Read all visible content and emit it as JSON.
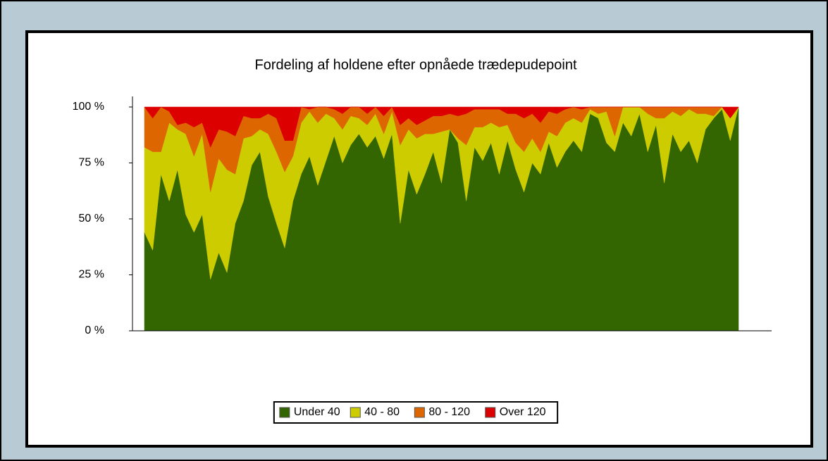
{
  "chart_data": {
    "type": "stacked_area_100",
    "title": "Fordeling af holdene efter opnåede trædepudepoint",
    "categories": [
      null,
      null,
      null,
      null,
      null,
      null,
      null,
      null,
      null,
      null,
      null,
      null,
      null,
      null,
      null,
      null,
      null,
      null,
      null,
      null,
      null,
      null,
      null,
      null,
      null,
      null,
      null,
      null,
      null,
      null,
      null,
      null,
      null,
      null,
      null,
      null,
      null,
      null,
      null,
      null,
      null,
      null,
      null,
      null,
      null,
      null,
      null,
      null,
      null,
      null,
      null,
      null,
      null,
      null,
      null,
      null,
      null,
      null,
      null,
      null,
      null,
      null,
      null,
      null,
      null,
      null,
      null,
      null,
      null,
      null,
      null,
      null,
      null
    ],
    "series": [
      {
        "name": "Under 40",
        "color": "#336600",
        "values": [
          44,
          36,
          70,
          58,
          72,
          52,
          44,
          52,
          23,
          35,
          26,
          48,
          58,
          74,
          80,
          60,
          48,
          37,
          58,
          70,
          78,
          65,
          76,
          87,
          75,
          83,
          88,
          82,
          87,
          77,
          88,
          48,
          72,
          61,
          70,
          80,
          66,
          90,
          84,
          58,
          82,
          76,
          84,
          70,
          85,
          72,
          62,
          75,
          70,
          84,
          73,
          80,
          85,
          80,
          97,
          95,
          84,
          80,
          93,
          87,
          97,
          80,
          92,
          66,
          88,
          80,
          85,
          75,
          90,
          95,
          99,
          85,
          100
        ]
      },
      {
        "name": "40 - 80",
        "color": "#cccc00",
        "values": [
          38,
          44,
          10,
          35,
          18,
          36,
          34,
          36,
          39,
          42,
          46,
          22,
          28,
          13,
          10,
          28,
          32,
          34,
          20,
          23,
          20,
          28,
          21,
          8,
          15,
          13,
          7,
          10,
          10,
          11,
          10,
          35,
          18,
          25,
          18,
          8,
          23,
          0,
          2,
          25,
          9,
          15,
          9,
          21,
          7,
          12,
          18,
          11,
          10,
          5,
          14,
          13,
          10,
          13,
          2,
          2,
          14,
          7,
          7,
          13,
          3,
          17,
          3,
          29,
          10,
          16,
          14,
          22,
          7,
          1,
          1,
          10,
          0
        ]
      },
      {
        "name": "80 - 120",
        "color": "#dd6600",
        "values": [
          18,
          15,
          20,
          5,
          2,
          5,
          13,
          5,
          20,
          13,
          17,
          17,
          10,
          8,
          5,
          9,
          15,
          14,
          7,
          7,
          1,
          7,
          3,
          4,
          7,
          4,
          5,
          5,
          3,
          8,
          2,
          9,
          5,
          6,
          6,
          8,
          7,
          7,
          10,
          14,
          8,
          8,
          6,
          8,
          5,
          13,
          15,
          11,
          13,
          9,
          10,
          6,
          5,
          6,
          1,
          3,
          2,
          13,
          0,
          0,
          0,
          3,
          5,
          5,
          2,
          4,
          1,
          3,
          3,
          4,
          0,
          0,
          0
        ]
      },
      {
        "name": "Over 120",
        "color": "#dd0000",
        "values": [
          0,
          5,
          0,
          2,
          8,
          7,
          9,
          7,
          18,
          10,
          11,
          13,
          4,
          5,
          5,
          3,
          5,
          15,
          15,
          0,
          1,
          0,
          0,
          1,
          3,
          0,
          0,
          3,
          0,
          4,
          0,
          8,
          5,
          8,
          6,
          4,
          4,
          3,
          4,
          3,
          1,
          1,
          1,
          1,
          3,
          3,
          5,
          3,
          7,
          2,
          3,
          1,
          0,
          1,
          0,
          0,
          0,
          0,
          0,
          0,
          0,
          0,
          0,
          0,
          0,
          0,
          0,
          0,
          0,
          0,
          0,
          5,
          0
        ]
      }
    ],
    "ylim": [
      0,
      100
    ],
    "yticks": [
      {
        "value": 0,
        "label": "0 %"
      },
      {
        "value": 25,
        "label": "25 %"
      },
      {
        "value": 50,
        "label": "50 %"
      },
      {
        "value": 75,
        "label": "75 %"
      },
      {
        "value": 100,
        "label": "100 %"
      }
    ],
    "grid": false
  }
}
